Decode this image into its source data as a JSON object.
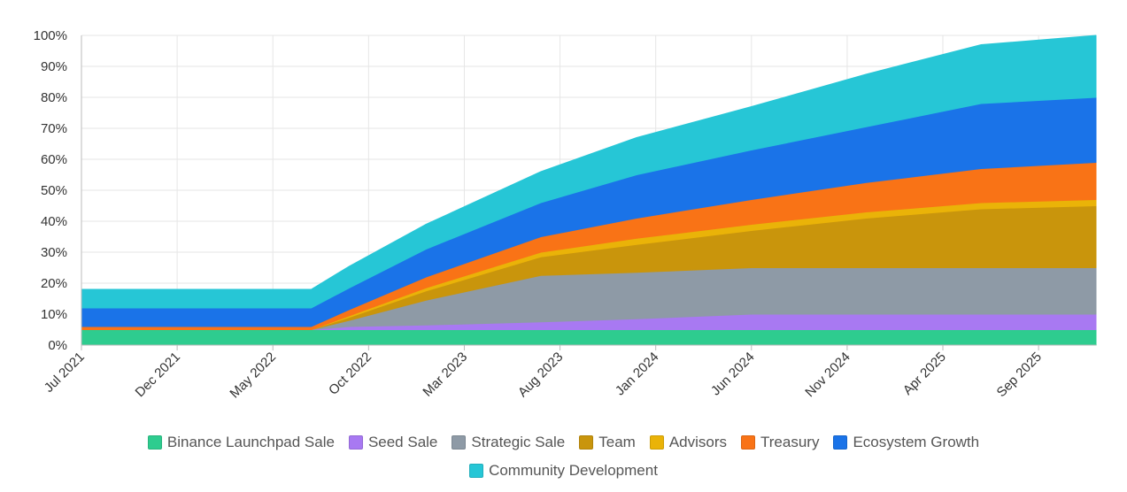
{
  "chart_data": {
    "type": "area",
    "stacked": true,
    "x": [
      "Jul 2021",
      "Dec 2021",
      "May 2022",
      "Oct 2022",
      "Mar 2023",
      "Aug 2023",
      "Jan 2024",
      "Jun 2024",
      "Nov 2024",
      "Apr 2025",
      "Sep 2025"
    ],
    "x_numeric_months": [
      0,
      5,
      10,
      15,
      20,
      25,
      30,
      35,
      40,
      45,
      50
    ],
    "points_months": [
      0,
      11,
      12,
      14,
      18,
      24,
      29,
      35,
      41,
      47,
      53
    ],
    "x_range_months": [
      0,
      53
    ],
    "ylim": [
      0,
      100
    ],
    "yticks": [
      0,
      10,
      20,
      30,
      40,
      50,
      60,
      70,
      80,
      90,
      100
    ],
    "ytick_labels": [
      "0%",
      "10%",
      "20%",
      "30%",
      "40%",
      "50%",
      "60%",
      "70%",
      "80%",
      "90%",
      "100%"
    ],
    "grid": true,
    "legend_position": "bottom",
    "series": [
      {
        "name": "Binance Launchpad Sale",
        "color": "#2ecc8f",
        "values": [
          5,
          5,
          5,
          5,
          5,
          5,
          5,
          5,
          5,
          5,
          5
        ]
      },
      {
        "name": "Seed Sale",
        "color": "#a879f2",
        "values": [
          0,
          0,
          0,
          1,
          1.5,
          2.5,
          3.5,
          5,
          5,
          5,
          5
        ]
      },
      {
        "name": "Strategic Sale",
        "color": "#8e9aa6",
        "values": [
          0,
          0,
          0,
          2,
          8,
          15,
          15,
          15,
          15,
          15,
          15
        ]
      },
      {
        "name": "Team",
        "color": "#c9950c",
        "values": [
          0,
          0,
          0,
          1,
          3,
          6,
          9,
          12,
          16,
          19,
          20
        ]
      },
      {
        "name": "Advisors",
        "color": "#eab308",
        "values": [
          0,
          0,
          0,
          0.5,
          1,
          1.5,
          2,
          2,
          2,
          2,
          2
        ]
      },
      {
        "name": "Treasury",
        "color": "#f97316",
        "values": [
          1,
          1,
          1,
          2,
          3.5,
          5,
          6.5,
          8,
          9.5,
          11,
          12
        ]
      },
      {
        "name": "Ecosystem Growth",
        "color": "#1a73e8",
        "values": [
          6,
          6,
          6,
          7,
          9,
          11,
          14,
          16,
          18,
          21,
          21
        ]
      },
      {
        "name": "Community Development",
        "color": "#26c6d6",
        "values": [
          6,
          6,
          6,
          7,
          8,
          10,
          12,
          14,
          17,
          19,
          20
        ]
      }
    ]
  },
  "colors": {
    "grid": "#e6e6e6",
    "axis_text": "#333333"
  }
}
